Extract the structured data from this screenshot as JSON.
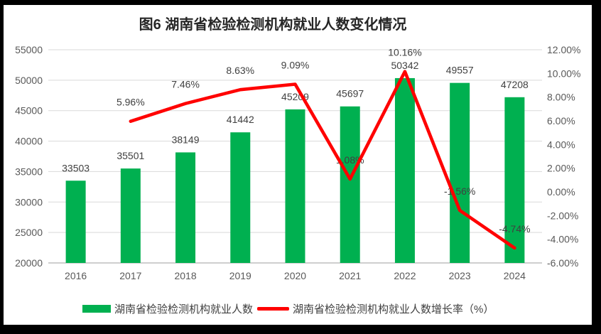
{
  "title": "图6 湖南省检验检测机构就业人数变化情况",
  "chart_data": {
    "type": "combo-bar-line",
    "categories": [
      "2016",
      "2017",
      "2018",
      "2019",
      "2020",
      "2021",
      "2022",
      "2023",
      "2024"
    ],
    "series": [
      {
        "name": "湖南省检验检测机构就业人数",
        "type": "bar",
        "axis": "left",
        "color": "#00B050",
        "values": [
          33503,
          35501,
          38149,
          41442,
          45209,
          45697,
          50342,
          49557,
          47208
        ],
        "point_labels": [
          "33503",
          "35501",
          "38149",
          "41442",
          "45209",
          "45697",
          "50342",
          "49557",
          "47208"
        ]
      },
      {
        "name": "湖南省检验检测机构就业人数增长率（%）",
        "type": "line",
        "axis": "right",
        "color": "#FF0000",
        "values": [
          null,
          5.96,
          7.46,
          8.63,
          9.09,
          1.08,
          10.16,
          -1.56,
          -4.74
        ],
        "point_labels": [
          null,
          "5.96%",
          "7.46%",
          "8.63%",
          "9.09%",
          "1.08%",
          "10.16%",
          "-1.56%",
          "-4.74%"
        ]
      }
    ],
    "left_axis": {
      "min": 20000,
      "max": 55000,
      "tick_labels": [
        "55000",
        "50000",
        "45000",
        "40000",
        "35000",
        "30000",
        "25000",
        "20000"
      ]
    },
    "right_axis": {
      "min": -6,
      "max": 12,
      "tick_labels": [
        "12.00%",
        "10.00%",
        "8.00%",
        "6.00%",
        "4.00%",
        "2.00%",
        "0.00%",
        "-2.00%",
        "-4.00%",
        "-6.00%"
      ]
    },
    "grid": true,
    "legend_position": "bottom"
  },
  "colors": {
    "frame": "#000000",
    "chart_bg": "#FFFFFF",
    "bar": "#00B050",
    "line": "#FF0000",
    "grid": "#D9D9D9",
    "axis_line": "#BFBFBF",
    "tick_text": "#595959",
    "label_text": "#404040",
    "title_text": "#262626"
  }
}
